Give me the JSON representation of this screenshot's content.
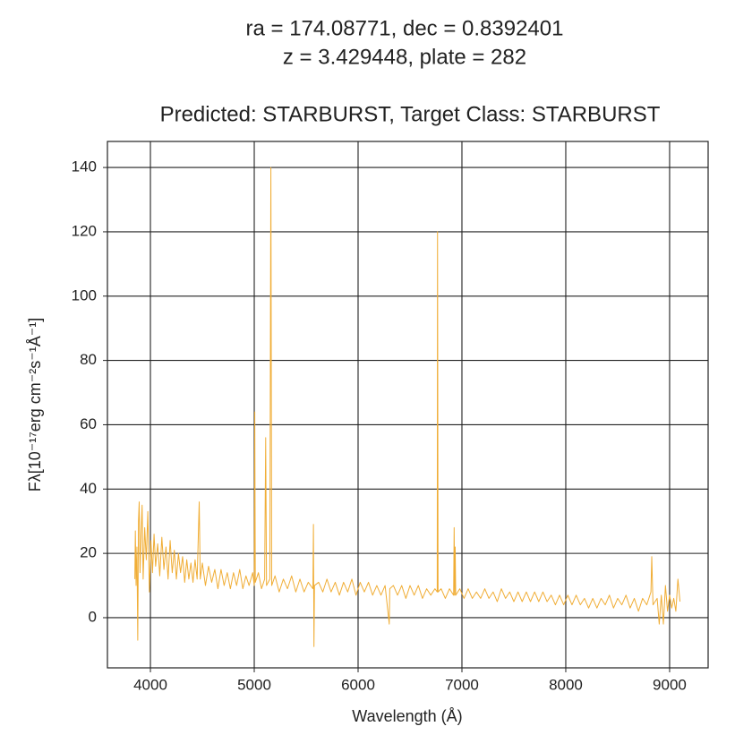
{
  "chart_data": {
    "type": "line",
    "title_lines": [
      "ra = 174.08771, dec = 0.8392401",
      "z = 3.429448, plate = 282"
    ],
    "subtitle": "Predicted: STARBURST, Target Class: STARBURST",
    "xlabel": "Wavelength (Å)",
    "ylabel": "Fλ[10⁻¹⁷erg cm⁻²s⁻¹Å⁻¹]",
    "xlim": [
      3586,
      9371
    ],
    "ylim": [
      -15.6,
      148.1
    ],
    "xticks": [
      4000,
      5000,
      6000,
      7000,
      8000,
      9000
    ],
    "yticks": [
      0,
      20,
      40,
      60,
      80,
      100,
      120,
      140
    ],
    "grid": true,
    "series": [
      {
        "color": "#f0ad35",
        "x": [
          3850,
          3855,
          3862,
          3870,
          3878,
          3885,
          3892,
          3900,
          3910,
          3920,
          3930,
          3945,
          3960,
          3975,
          3990,
          4005,
          4020,
          4035,
          4050,
          4070,
          4090,
          4110,
          4130,
          4150,
          4170,
          4190,
          4210,
          4230,
          4250,
          4270,
          4290,
          4310,
          4330,
          4350,
          4370,
          4390,
          4410,
          4430,
          4450,
          4470,
          4480,
          4500,
          4530,
          4560,
          4590,
          4620,
          4650,
          4680,
          4710,
          4740,
          4770,
          4800,
          4830,
          4860,
          4890,
          4920,
          4950,
          4985,
          5000,
          5005,
          5010,
          5040,
          5070,
          5100,
          5110,
          5118,
          5150,
          5160,
          5168,
          5200,
          5240,
          5280,
          5320,
          5360,
          5400,
          5440,
          5480,
          5520,
          5565,
          5570,
          5575,
          5580,
          5620,
          5660,
          5700,
          5740,
          5780,
          5820,
          5860,
          5900,
          5940,
          5980,
          6020,
          6060,
          6100,
          6140,
          6180,
          6220,
          6260,
          6300,
          6305,
          6340,
          6380,
          6420,
          6460,
          6500,
          6540,
          6580,
          6620,
          6660,
          6700,
          6740,
          6762,
          6765,
          6770,
          6800,
          6840,
          6880,
          6920,
          6925,
          6930,
          6935,
          6940,
          6980,
          7020,
          7060,
          7100,
          7140,
          7180,
          7220,
          7260,
          7300,
          7340,
          7380,
          7420,
          7460,
          7500,
          7540,
          7580,
          7620,
          7660,
          7700,
          7740,
          7780,
          7820,
          7860,
          7900,
          7940,
          7980,
          8020,
          8060,
          8100,
          8140,
          8180,
          8220,
          8260,
          8300,
          8340,
          8380,
          8420,
          8460,
          8500,
          8540,
          8580,
          8620,
          8660,
          8700,
          8740,
          8780,
          8820,
          8828,
          8840,
          8880,
          8900,
          8920,
          8940,
          8960,
          8980,
          9000,
          9020,
          9040,
          9060,
          9080,
          9100
        ],
        "values": [
          12,
          27,
          10,
          22,
          -7,
          30,
          36,
          14,
          26,
          35,
          12,
          28,
          18,
          33,
          8,
          24,
          14,
          26,
          16,
          23,
          13,
          25,
          15,
          22,
          12,
          24,
          14,
          21,
          12,
          20,
          14,
          19,
          11,
          18,
          12,
          17,
          11,
          18,
          12,
          36,
          12,
          17,
          10,
          16,
          11,
          15,
          9,
          15,
          10,
          14,
          9,
          14,
          10,
          15,
          9,
          13,
          10,
          14,
          10,
          64,
          11,
          14,
          9,
          12,
          56,
          10,
          12,
          140,
          10,
          13,
          8,
          12,
          9,
          13,
          8,
          12,
          8,
          11,
          9,
          29,
          -9,
          10,
          11,
          8,
          12,
          8,
          11,
          7,
          11,
          8,
          12,
          7,
          11,
          8,
          11,
          7,
          10,
          7,
          10,
          -2,
          9,
          10,
          7,
          10,
          6,
          10,
          7,
          10,
          6,
          9,
          7,
          9,
          8,
          120,
          8,
          9,
          6,
          9,
          7,
          28,
          7,
          22,
          7,
          9,
          6,
          9,
          6,
          8,
          6,
          9,
          6,
          8,
          5,
          9,
          6,
          8,
          5,
          8,
          5,
          8,
          5,
          8,
          5,
          8,
          5,
          7,
          4,
          7,
          4,
          7,
          4,
          7,
          4,
          6,
          3,
          6,
          3,
          6,
          4,
          7,
          3,
          6,
          4,
          7,
          3,
          6,
          2,
          6,
          4,
          8,
          19,
          4,
          6,
          -2,
          7,
          -2,
          10,
          2,
          7,
          3,
          6,
          2,
          12,
          5
        ]
      }
    ]
  }
}
